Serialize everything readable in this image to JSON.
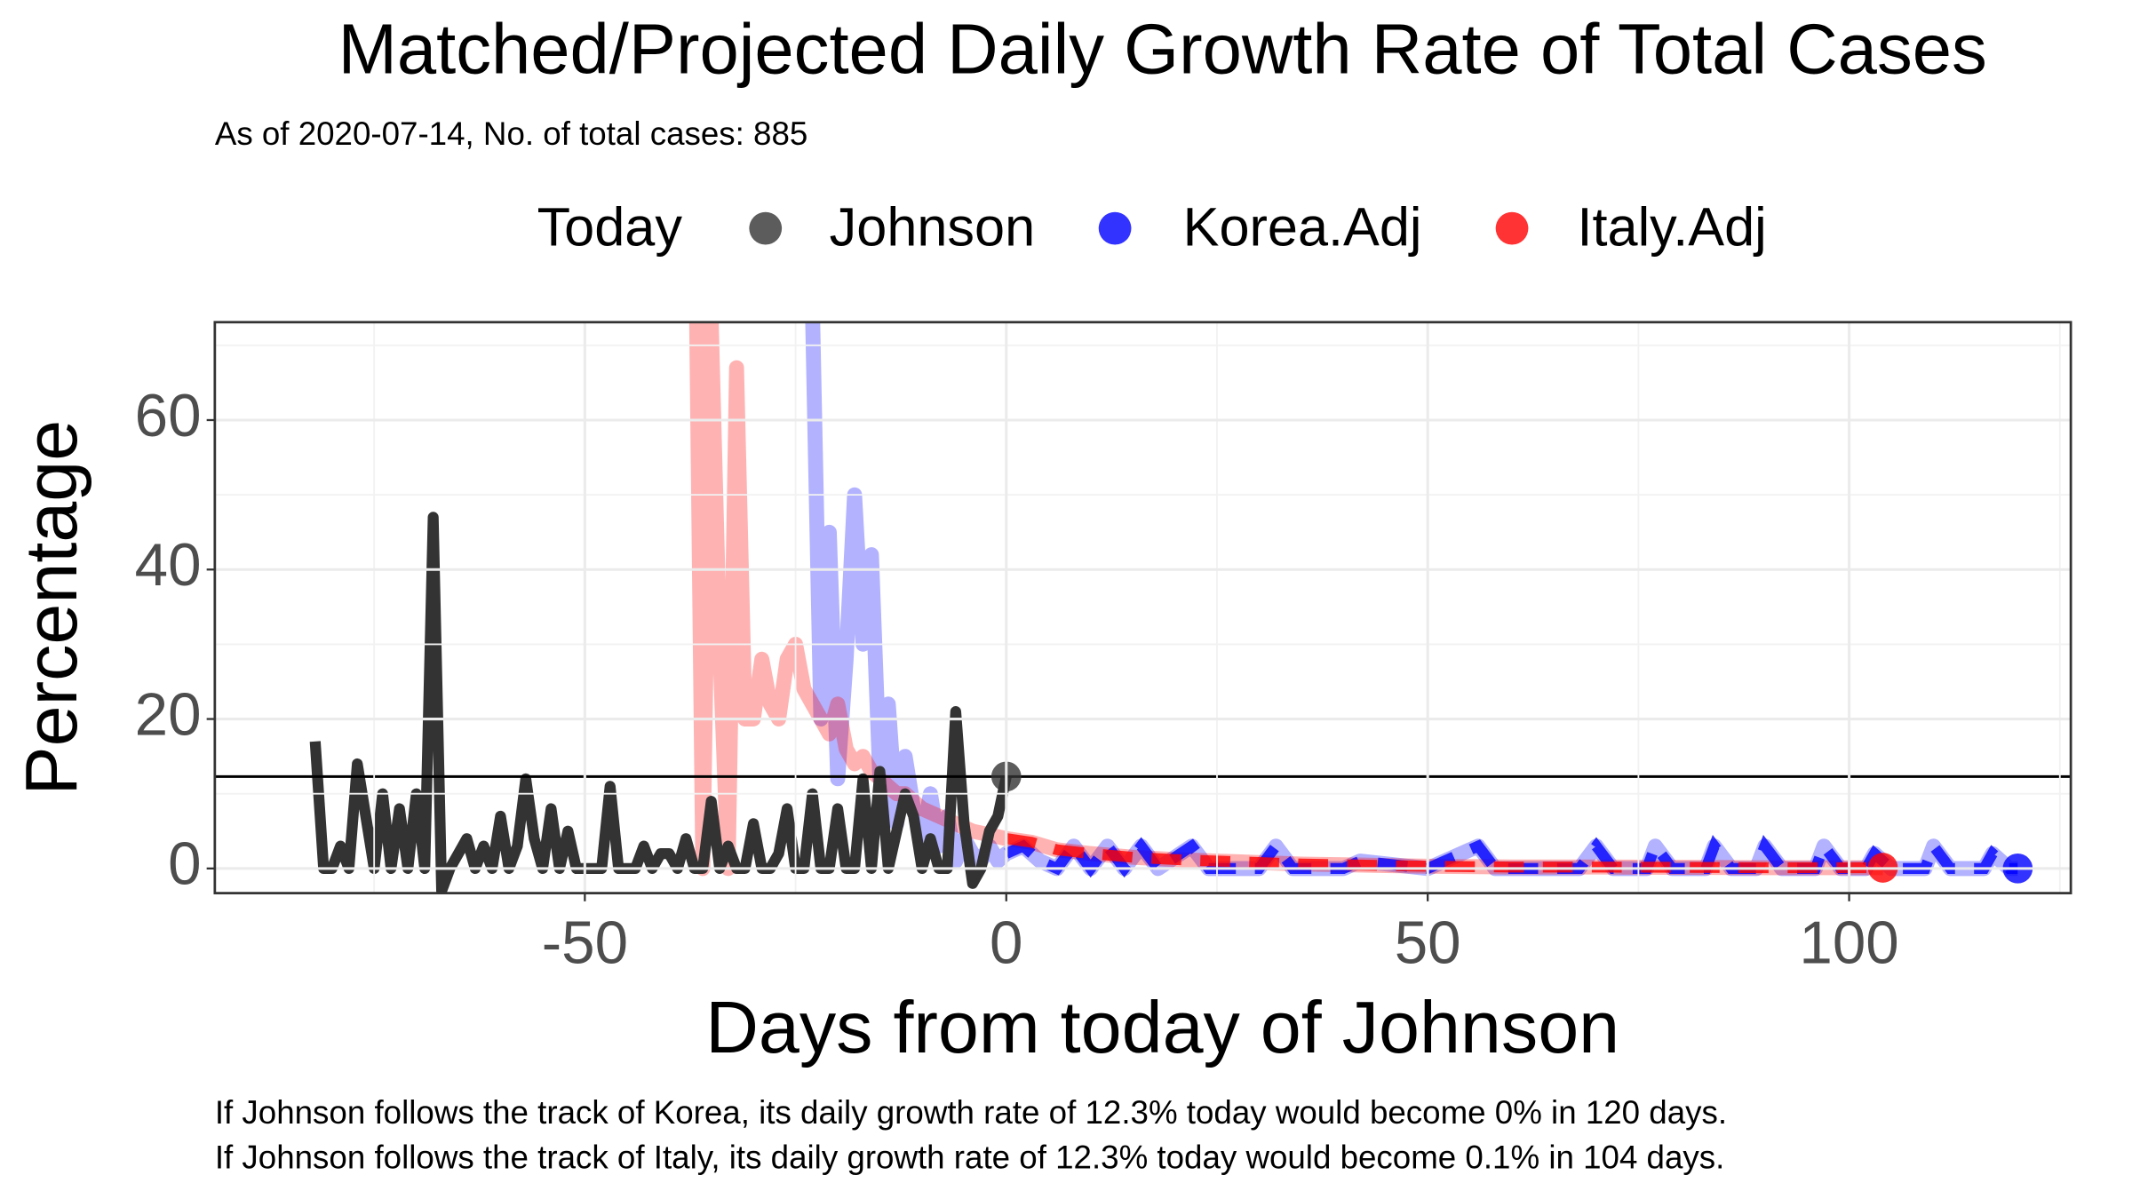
{
  "chart_data": {
    "type": "line",
    "title": "Matched/Projected Daily Growth Rate of Total Cases",
    "subtitle": "As of 2020-07-14, No. of total cases: 885",
    "legend_title": "Today",
    "x_label": "Days from today of Johnson",
    "y_label": "Percentage",
    "annotations": [
      "If Johnson follows the track of Korea, its daily growth rate of 12.3% today would become 0% in 120 days.",
      "If Johnson follows the track of Italy, its daily growth rate of 12.3% today would become 0.1% in 104 days."
    ],
    "xlim": [
      -93.9,
      126.3
    ],
    "ylim": [
      -3.3,
      73.1
    ],
    "xticks": [
      -50,
      0,
      50,
      100
    ],
    "yticks": [
      0,
      20,
      40,
      60
    ],
    "grid": true,
    "hline": 12.3,
    "series": [
      {
        "name": "Johnson",
        "color": "#333333",
        "x": [
          -82,
          -81,
          -80,
          -79,
          -78,
          -77,
          -76,
          -75,
          -74,
          -73,
          -72,
          -71,
          -70,
          -69,
          -68,
          -67,
          -66,
          -65,
          -64,
          -63,
          -62,
          -61,
          -60,
          -59,
          -58,
          -57,
          -56,
          -55,
          -54,
          -53,
          -52,
          -51,
          -50,
          -49,
          -48,
          -47,
          -46,
          -45,
          -44,
          -43,
          -42,
          -41,
          -40,
          -39,
          -38,
          -37,
          -36,
          -35,
          -34,
          -33,
          -32,
          -31,
          -30,
          -29,
          -28,
          -27,
          -26,
          -25,
          -24,
          -23,
          -22,
          -21,
          -20,
          -19,
          -18,
          -17,
          -16,
          -15,
          -14,
          -13,
          -12,
          -11,
          -10,
          -9,
          -8,
          -7,
          -6,
          -5,
          -4,
          -3,
          -2,
          -1,
          0
        ],
        "values": [
          17,
          0,
          0,
          3,
          0,
          14,
          7,
          0,
          10,
          0,
          8,
          0,
          10,
          0,
          47,
          -3,
          0,
          2,
          4,
          0,
          3,
          0,
          7,
          0,
          3,
          12,
          4,
          0,
          8,
          0,
          5,
          0,
          0,
          0,
          0,
          11,
          0,
          0,
          0,
          3,
          0,
          2,
          2,
          0,
          4,
          0,
          0,
          9,
          0,
          3,
          0,
          0,
          6,
          0,
          0,
          2,
          8,
          0,
          0,
          10,
          0,
          0,
          8,
          0,
          0,
          12,
          0,
          13,
          0,
          5,
          10,
          7,
          0,
          4,
          0,
          0,
          21,
          6,
          -2,
          0,
          5,
          7,
          12.3
        ]
      },
      {
        "name": "Korea.Adj",
        "color": "#0000ff",
        "x": [
          -24,
          -23,
          -22,
          -21,
          -20,
          -19,
          -18,
          -17,
          -16,
          -15,
          -14,
          -13,
          -12,
          -11,
          -10,
          -9,
          -8,
          -7,
          -6,
          -5,
          -4,
          -3,
          -2,
          -1,
          0,
          2,
          4,
          6,
          8,
          10,
          12,
          14,
          16,
          18,
          22,
          24,
          30,
          32,
          34,
          40,
          42,
          50,
          56,
          58,
          68,
          70,
          72,
          76,
          77,
          79,
          83,
          84,
          86,
          89,
          90,
          92,
          96,
          97,
          99,
          102,
          103,
          105,
          109,
          110,
          112,
          116,
          117,
          119,
          120
        ],
        "values": [
          100,
          75,
          20,
          45,
          12,
          28,
          50,
          30,
          42,
          12,
          22,
          6,
          15,
          8,
          4,
          10,
          3,
          7,
          1,
          4,
          2,
          1,
          3,
          1,
          2,
          3,
          1,
          0,
          3,
          0,
          3,
          0,
          3,
          0,
          3,
          0,
          0,
          3,
          0,
          0,
          1,
          0,
          3,
          0,
          0,
          3,
          0,
          0,
          3,
          0,
          0,
          3,
          0,
          0,
          3,
          0,
          0,
          3,
          0,
          0,
          2,
          0,
          0,
          3,
          0,
          0,
          2,
          0,
          0
        ]
      },
      {
        "name": "Italy.Adj",
        "color": "#ff0000",
        "x": [
          -37,
          -36,
          -35,
          -34,
          -33,
          -32,
          -31,
          -30,
          -29,
          -28,
          -27,
          -26,
          -25,
          -24,
          -23,
          -22,
          -21,
          -20,
          -19,
          -18,
          -17,
          -16,
          -15,
          -14,
          -13,
          -12,
          -11,
          -10,
          -8,
          -6,
          -4,
          -2,
          0,
          3,
          6,
          10,
          15,
          20,
          25,
          30,
          35,
          40,
          45,
          50,
          60,
          70,
          80,
          90,
          104
        ],
        "values": [
          100,
          0,
          73,
          30,
          0,
          67,
          20,
          20,
          28,
          22,
          20,
          28,
          30,
          24,
          22,
          20,
          18,
          22,
          16,
          14,
          15,
          13,
          12,
          11,
          10,
          10,
          9,
          8,
          7,
          6,
          5,
          4.5,
          4,
          3.5,
          2.5,
          2,
          1.5,
          1.2,
          1,
          0.8,
          0.6,
          0.5,
          0.4,
          0.3,
          0.2,
          0.2,
          0.15,
          0.1,
          0.1
        ]
      }
    ]
  }
}
